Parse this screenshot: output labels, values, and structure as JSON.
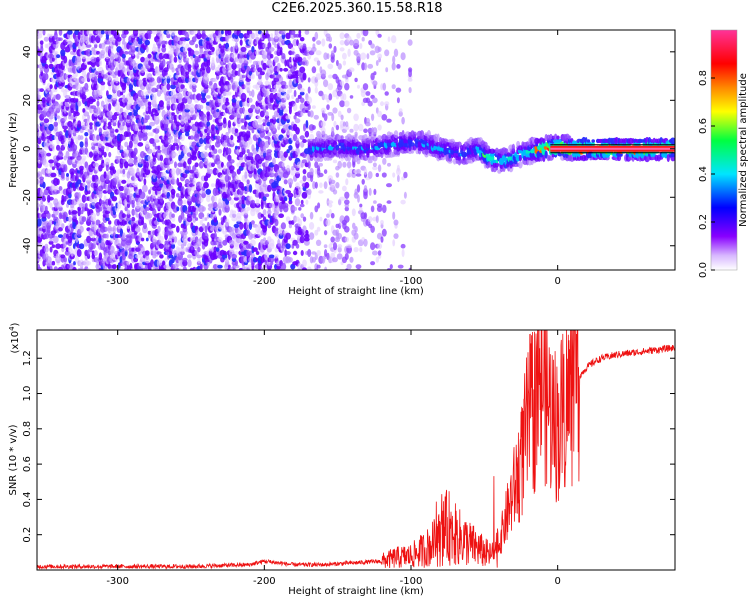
{
  "figure_title": "C2E6.2025.360.15.58.R18",
  "colors": {
    "spectrogram_low": "#c9a8ff",
    "spectrogram_mid": "#6a00ff",
    "spectrogram_peak": "#ff2a2a",
    "snr_line": "#ee1111",
    "background": "#ffffff"
  },
  "chart_data": [
    {
      "type": "heatmap",
      "title": "",
      "xlabel": "Height of straight line (km)",
      "ylabel": "Frequency (Hz)",
      "xlim": [
        -355,
        80
      ],
      "ylim": [
        -50,
        49
      ],
      "xticks": [
        -300,
        -200,
        -100,
        0
      ],
      "xtick_labels": [
        "-300",
        "-200",
        "-100",
        "0"
      ],
      "yticks": [
        -40,
        -20,
        0,
        20,
        40
      ],
      "ytick_labels": [
        "-40",
        "-20",
        "0",
        "20",
        "40"
      ],
      "ridge": {
        "x": [
          -165,
          -150,
          -130,
          -110,
          -95,
          -80,
          -65,
          -55,
          -48,
          -40,
          -32,
          -25,
          -18,
          -10,
          0,
          10,
          25,
          50,
          80
        ],
        "y": [
          0,
          1,
          0,
          2,
          3,
          0,
          -2,
          0,
          -3,
          -5,
          -4,
          -2,
          -1,
          0,
          1,
          0,
          0,
          0,
          0
        ]
      },
      "colorbar": {
        "label": "Normalized spectral amplitude",
        "range": [
          0,
          1
        ],
        "ticks": [
          0.0,
          0.2,
          0.4,
          0.6,
          0.8
        ],
        "tick_labels": [
          "0.0",
          "0.2",
          "0.4",
          "0.6",
          "0.8"
        ],
        "colormap": [
          "#ffffff",
          "#8800ff",
          "#0000ff",
          "#00e5ff",
          "#00ff40",
          "#ffff00",
          "#ff8800",
          "#ff0000",
          "#ff3399"
        ]
      }
    },
    {
      "type": "line",
      "title": "",
      "xlabel": "Height of straight line (km)",
      "ylabel": "SNR (10 * v/v)",
      "y_multiplier": "(x10",
      "y_multiplier_exp": "4",
      "xlim": [
        -355,
        80
      ],
      "ylim": [
        0,
        1.36
      ],
      "xticks": [
        -300,
        -200,
        -100,
        0
      ],
      "xtick_labels": [
        "-300",
        "-200",
        "-100",
        "0"
      ],
      "yticks": [
        0.2,
        0.4,
        0.6,
        0.8,
        1.0,
        1.2
      ],
      "ytick_labels": [
        "0.2",
        "0.4",
        "0.6",
        "0.8",
        "1.0",
        "1.2"
      ],
      "series": [
        {
          "name": "SNR",
          "x": [
            -355,
            -300,
            -250,
            -210,
            -200,
            -190,
            -180,
            -160,
            -140,
            -120,
            -110,
            -100,
            -90,
            -80,
            -75,
            -70,
            -60,
            -50,
            -45,
            -40,
            -35,
            -30,
            -25,
            -20,
            -15,
            -10,
            -5,
            0,
            5,
            10,
            15,
            20,
            25,
            30,
            40,
            50,
            60,
            70,
            80
          ],
          "y": [
            0.02,
            0.02,
            0.02,
            0.03,
            0.05,
            0.04,
            0.03,
            0.03,
            0.04,
            0.05,
            0.07,
            0.08,
            0.12,
            0.18,
            0.25,
            0.2,
            0.15,
            0.1,
            0.08,
            0.15,
            0.3,
            0.45,
            0.6,
            0.85,
            0.95,
            1.1,
            0.9,
            0.8,
            0.95,
            1.0,
            1.1,
            1.15,
            1.18,
            1.2,
            1.22,
            1.23,
            1.24,
            1.25,
            1.26
          ]
        }
      ]
    }
  ]
}
